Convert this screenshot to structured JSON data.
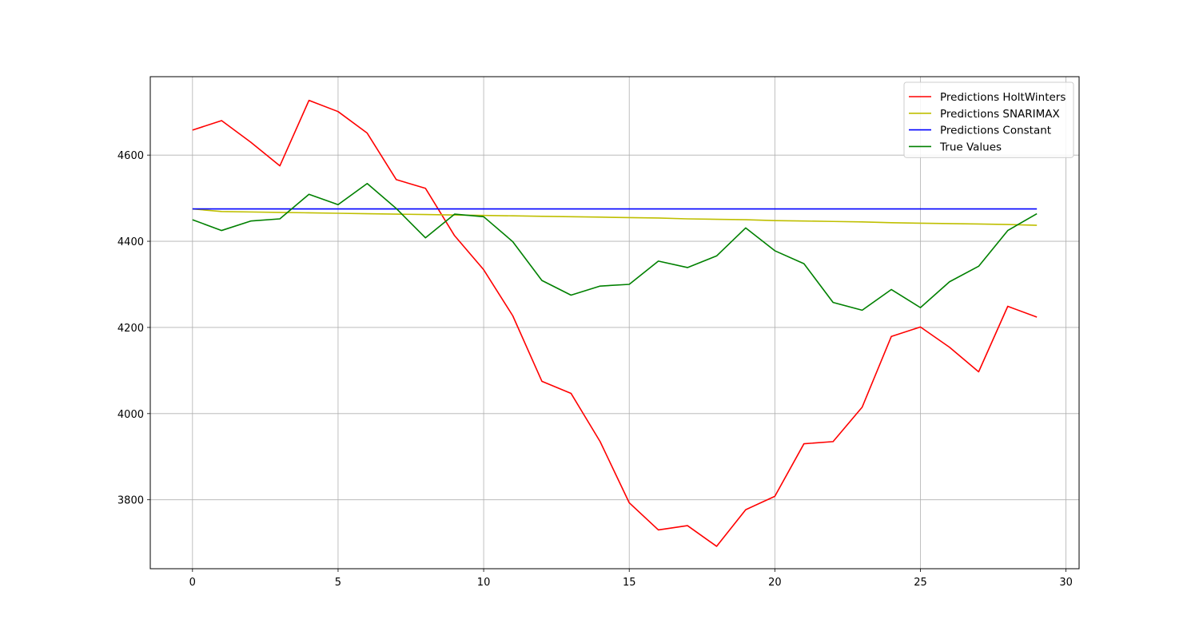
{
  "chart_data": {
    "type": "line",
    "title": "",
    "xlabel": "",
    "ylabel": "",
    "xlim": [
      -1.45,
      30.45
    ],
    "ylim": [
      3640,
      4782
    ],
    "x_ticks": [
      0,
      5,
      10,
      15,
      20,
      25,
      30
    ],
    "y_ticks": [
      3800,
      4000,
      4200,
      4400,
      4600
    ],
    "grid": true,
    "legend_position": "top-right",
    "x": [
      0,
      1,
      2,
      3,
      4,
      5,
      6,
      7,
      8,
      9,
      10,
      11,
      12,
      13,
      14,
      15,
      16,
      17,
      18,
      19,
      20,
      21,
      22,
      23,
      24,
      25,
      26,
      27,
      28,
      29
    ],
    "series": [
      {
        "name": "Predictions HoltWinters",
        "color": "#ff0000",
        "values": [
          4658,
          4680,
          4630,
          4575,
          4727,
          4701,
          4651,
          4543,
          4523,
          4413,
          4334,
          4227,
          4075,
          4047,
          3935,
          3793,
          3730,
          3740,
          3692,
          3777,
          3808,
          3930,
          3935,
          4015,
          4179,
          4201,
          4154,
          4097,
          4249,
          4224
        ]
      },
      {
        "name": "Predictions SNARIMAX",
        "color": "#bfbf00",
        "values": [
          4475,
          4469,
          4468,
          4467,
          4466,
          4465,
          4464,
          4463,
          4462,
          4461,
          4460,
          4459,
          4458,
          4457,
          4456,
          4455,
          4454,
          4452,
          4451,
          4450,
          4448,
          4447,
          4446,
          4445,
          4443,
          4442,
          4441,
          4440,
          4439,
          4437
        ]
      },
      {
        "name": "Predictions Constant",
        "color": "#0000ff",
        "values": [
          4475,
          4475,
          4475,
          4475,
          4475,
          4475,
          4475,
          4475,
          4475,
          4475,
          4475,
          4475,
          4475,
          4475,
          4475,
          4475,
          4475,
          4475,
          4475,
          4475,
          4475,
          4475,
          4475,
          4475,
          4475,
          4475,
          4475,
          4475,
          4475,
          4475
        ]
      },
      {
        "name": "True Values",
        "color": "#008000",
        "values": [
          4450,
          4425,
          4447,
          4452,
          4509,
          4485,
          4534,
          4476,
          4408,
          4463,
          4457,
          4399,
          4309,
          4275,
          4296,
          4300,
          4354,
          4339,
          4366,
          4431,
          4378,
          4348,
          4258,
          4240,
          4288,
          4246,
          4306,
          4342,
          4425,
          4464
        ]
      }
    ]
  }
}
